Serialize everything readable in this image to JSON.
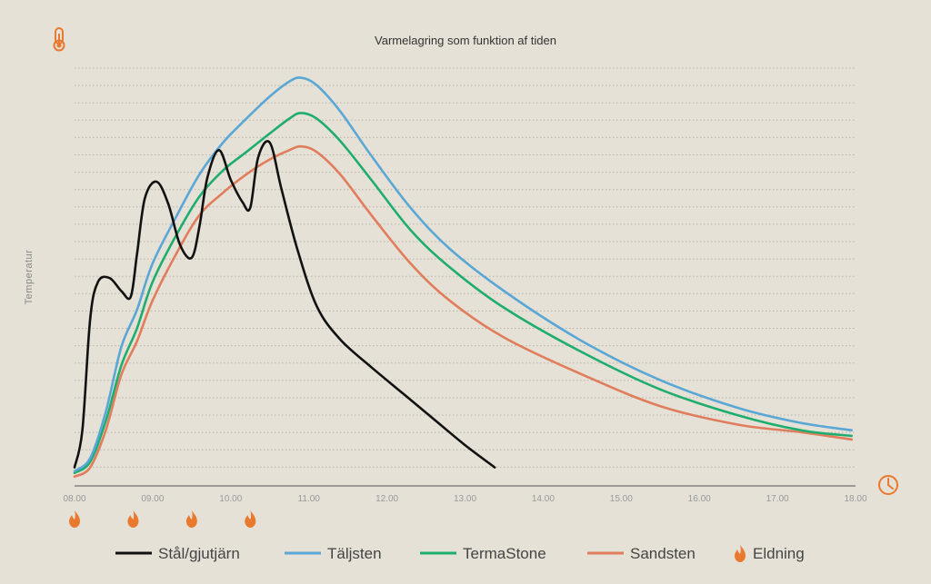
{
  "chart_data": {
    "type": "line",
    "title": "Varmelagring som funktion af tiden",
    "xlabel": "",
    "ylabel": "Temperatur",
    "x_ticks": [
      "08.00",
      "09.00",
      "10.00",
      "11.00",
      "12.00",
      "13.00",
      "14.00",
      "15.00",
      "16.00",
      "17.00",
      "18.00"
    ],
    "xlim": [
      8,
      18
    ],
    "ylim": [
      0,
      23.5
    ],
    "grid": true,
    "legend_position": "bottom",
    "firing_times": [
      8.0,
      8.75,
      9.5,
      10.25
    ],
    "firing_label": "Eldning",
    "series": [
      {
        "name": "Stål/gjutjärn",
        "color": "#111111",
        "x": [
          8.0,
          8.1,
          8.2,
          8.3,
          8.45,
          8.6,
          8.72,
          8.8,
          8.9,
          9.05,
          9.2,
          9.35,
          9.5,
          9.6,
          9.7,
          9.85,
          10.0,
          10.15,
          10.25,
          10.35,
          10.5,
          10.65,
          10.85,
          11.1,
          11.4,
          11.8,
          12.2,
          12.6,
          13.0,
          13.38
        ],
        "y": [
          1.0,
          3.0,
          9.0,
          11.0,
          11.2,
          10.5,
          10.2,
          12.5,
          15.5,
          16.4,
          15.2,
          13.0,
          12.3,
          14.0,
          16.6,
          18.1,
          16.5,
          15.3,
          15.0,
          17.7,
          18.5,
          16.0,
          12.8,
          9.7,
          7.9,
          6.4,
          5.0,
          3.6,
          2.2,
          1.0
        ]
      },
      {
        "name": "Täljsten",
        "color": "#5aa7d6",
        "x": [
          8.0,
          8.2,
          8.4,
          8.6,
          8.8,
          9.0,
          9.3,
          9.6,
          9.9,
          10.2,
          10.5,
          10.75,
          10.9,
          11.1,
          11.4,
          11.8,
          12.3,
          12.8,
          13.5,
          14.5,
          15.5,
          16.5,
          17.3,
          17.95
        ],
        "y": [
          0.8,
          1.5,
          4.0,
          7.5,
          9.5,
          12.0,
          14.5,
          16.8,
          18.5,
          19.8,
          21.0,
          21.8,
          22.0,
          21.6,
          20.2,
          17.8,
          15.0,
          12.8,
          10.5,
          7.8,
          5.7,
          4.2,
          3.4,
          3.0
        ]
      },
      {
        "name": "TermaStone",
        "color": "#1fad6f",
        "x": [
          8.0,
          8.2,
          8.4,
          8.6,
          8.8,
          9.0,
          9.3,
          9.6,
          9.9,
          10.2,
          10.5,
          10.75,
          10.9,
          11.1,
          11.4,
          11.8,
          12.3,
          12.8,
          13.5,
          14.5,
          15.5,
          16.5,
          17.3,
          17.95
        ],
        "y": [
          0.7,
          1.3,
          3.5,
          6.5,
          8.5,
          11.0,
          13.5,
          15.6,
          17.0,
          18.0,
          19.0,
          19.8,
          20.1,
          19.8,
          18.6,
          16.5,
          13.8,
          11.8,
          9.6,
          7.2,
          5.2,
          3.8,
          3.0,
          2.7
        ]
      },
      {
        "name": "Sandsten",
        "color": "#e07d5c",
        "x": [
          8.0,
          8.2,
          8.4,
          8.6,
          8.8,
          9.0,
          9.3,
          9.6,
          9.9,
          10.2,
          10.5,
          10.75,
          10.9,
          11.1,
          11.4,
          11.8,
          12.3,
          12.8,
          13.5,
          14.5,
          15.5,
          16.5,
          17.3,
          17.95
        ],
        "y": [
          0.5,
          1.0,
          3.0,
          6.0,
          7.8,
          10.0,
          12.5,
          14.6,
          15.8,
          16.8,
          17.6,
          18.1,
          18.3,
          18.0,
          16.8,
          14.6,
          12.0,
          10.0,
          8.0,
          6.0,
          4.3,
          3.3,
          2.9,
          2.5
        ]
      }
    ]
  }
}
